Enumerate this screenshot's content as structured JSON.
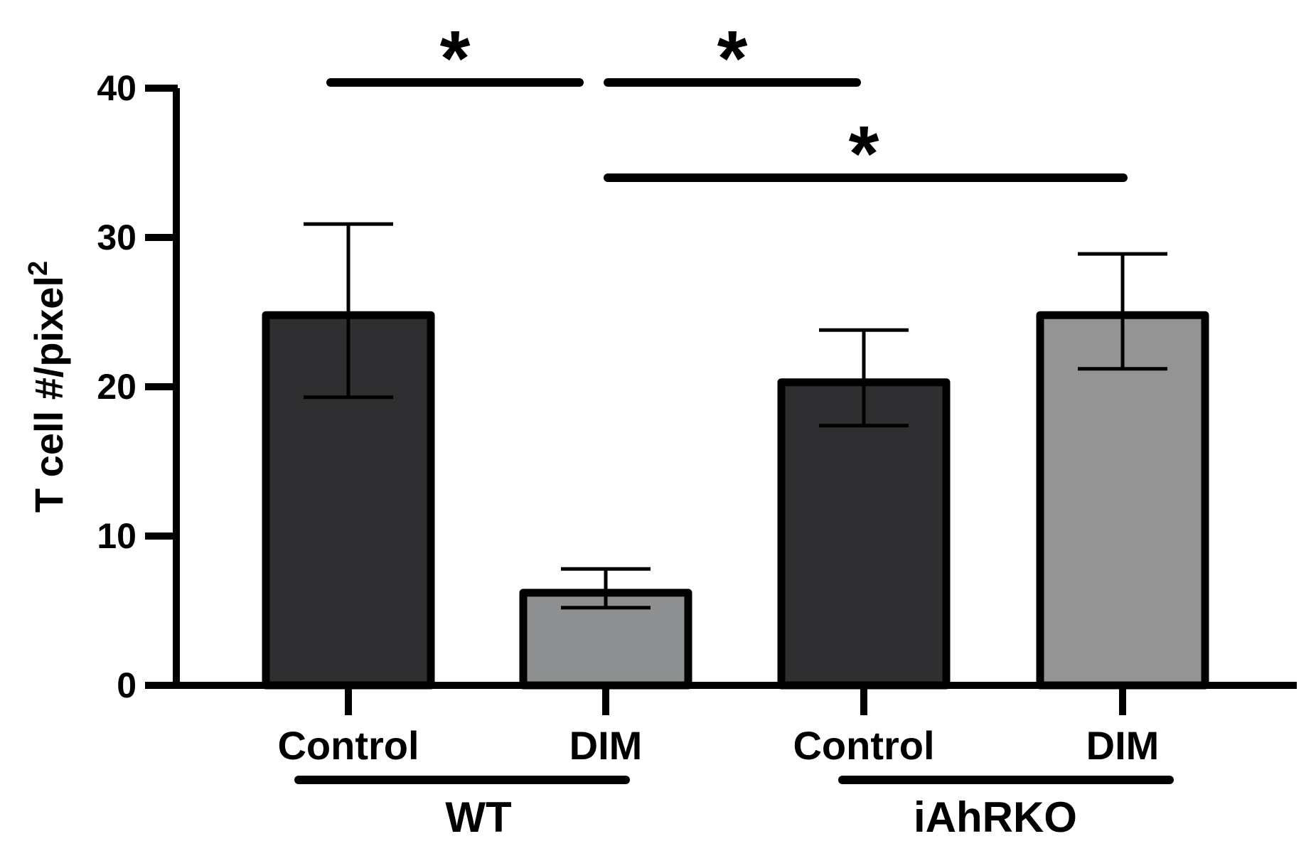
{
  "chart_data": {
    "type": "bar",
    "title": "",
    "xlabel": "",
    "ylabel": "T cell #/pixel",
    "ylabel_superscript": "2",
    "ylim": [
      0,
      40
    ],
    "yticks": [
      "0",
      "10",
      "20",
      "30",
      "40"
    ],
    "grid": false,
    "legend": "none",
    "categories": [
      "Control",
      "DIM",
      "Control",
      "DIM"
    ],
    "groups": [
      {
        "label": "WT",
        "categories": [
          0,
          1
        ]
      },
      {
        "label": "iAhRKO",
        "categories": [
          2,
          3
        ]
      }
    ],
    "values": [
      24.8,
      6.2,
      20.3,
      24.8
    ],
    "error_upper": [
      30.9,
      7.8,
      23.8,
      28.9
    ],
    "error_lower": [
      19.3,
      5.2,
      17.4,
      21.2
    ],
    "bar_colors": [
      "#2f2f31",
      "#8e8f91",
      "#2f2f31",
      "#949494"
    ],
    "significance": [
      {
        "from": 0,
        "to": 1,
        "label": "*"
      },
      {
        "from": 1,
        "to": 2,
        "label": "*"
      },
      {
        "from": 1,
        "to": 3,
        "label": "*"
      }
    ]
  }
}
